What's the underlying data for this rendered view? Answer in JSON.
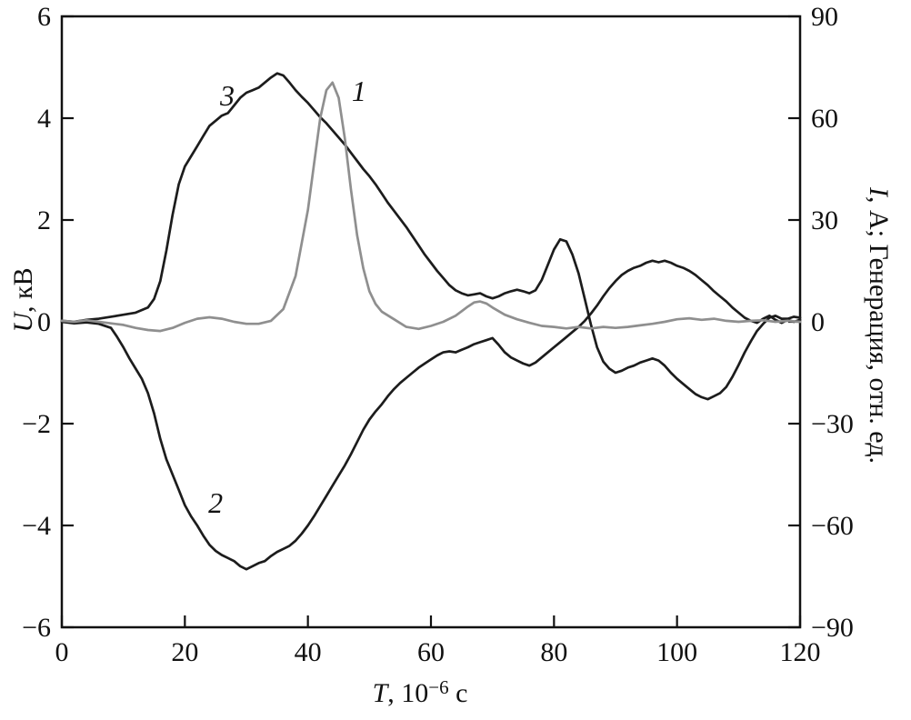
{
  "figure": {
    "background": "#ffffff",
    "frame_color": "#111111"
  },
  "labels": {
    "left_var": "U",
    "left_rest": ", кВ",
    "right_var": "I",
    "right_rest": ", А; Генерация, отн. ед.",
    "x_var": "T",
    "x_mid": ", 10",
    "x_sup": "−6",
    "x_suffix": " с"
  },
  "chart_data": {
    "type": "line",
    "title": "",
    "xlabel": "T, 10⁻⁶ с",
    "ylabel_left": "U, кВ",
    "ylabel_right": "I, А; Генерация, отн. ед.",
    "xlim": [
      0,
      120
    ],
    "ylim_left": [
      -6,
      6
    ],
    "ylim_right": [
      -90,
      90
    ],
    "x_ticks": [
      0,
      20,
      40,
      60,
      80,
      100,
      120
    ],
    "left_ticks": [
      -6,
      -4,
      -2,
      0,
      2,
      4,
      6
    ],
    "right_ticks": [
      -90,
      -60,
      -30,
      0,
      30,
      60,
      90
    ],
    "grid": false,
    "legend": "in-plot numbered curve labels",
    "annotations": [
      {
        "label": "1",
        "x": 48.3,
        "y": 4.54
      },
      {
        "label": "2",
        "x": 25.0,
        "y": -3.55
      },
      {
        "label": "3",
        "x": 26.9,
        "y": 4.45
      }
    ],
    "series": [
      {
        "name": "3",
        "color": "#1c1c1c",
        "width": 2.7,
        "points": [
          [
            0,
            0.02
          ],
          [
            2,
            0.0
          ],
          [
            4,
            0.04
          ],
          [
            6,
            0.06
          ],
          [
            8,
            0.1
          ],
          [
            10,
            0.14
          ],
          [
            12,
            0.18
          ],
          [
            14,
            0.28
          ],
          [
            15,
            0.45
          ],
          [
            16,
            0.8
          ],
          [
            17,
            1.4
          ],
          [
            18,
            2.1
          ],
          [
            19,
            2.7
          ],
          [
            20,
            3.05
          ],
          [
            21,
            3.25
          ],
          [
            22,
            3.45
          ],
          [
            23,
            3.65
          ],
          [
            24,
            3.85
          ],
          [
            25,
            3.95
          ],
          [
            26,
            4.05
          ],
          [
            27,
            4.1
          ],
          [
            28,
            4.25
          ],
          [
            29,
            4.4
          ],
          [
            30,
            4.5
          ],
          [
            31,
            4.55
          ],
          [
            32,
            4.6
          ],
          [
            33,
            4.7
          ],
          [
            34,
            4.8
          ],
          [
            35,
            4.88
          ],
          [
            36,
            4.84
          ],
          [
            37,
            4.7
          ],
          [
            38,
            4.55
          ],
          [
            39,
            4.42
          ],
          [
            40,
            4.3
          ],
          [
            41,
            4.16
          ],
          [
            42,
            4.02
          ],
          [
            43,
            3.9
          ],
          [
            44,
            3.76
          ],
          [
            45,
            3.62
          ],
          [
            46,
            3.48
          ],
          [
            47,
            3.32
          ],
          [
            48,
            3.16
          ],
          [
            49,
            3.0
          ],
          [
            50,
            2.86
          ],
          [
            51,
            2.7
          ],
          [
            52,
            2.52
          ],
          [
            53,
            2.34
          ],
          [
            54,
            2.18
          ],
          [
            55,
            2.02
          ],
          [
            56,
            1.86
          ],
          [
            57,
            1.68
          ],
          [
            58,
            1.5
          ],
          [
            59,
            1.32
          ],
          [
            60,
            1.16
          ],
          [
            61,
            1.0
          ],
          [
            62,
            0.86
          ],
          [
            63,
            0.72
          ],
          [
            64,
            0.62
          ],
          [
            65,
            0.56
          ],
          [
            66,
            0.52
          ],
          [
            67,
            0.54
          ],
          [
            68,
            0.56
          ],
          [
            69,
            0.5
          ],
          [
            70,
            0.46
          ],
          [
            71,
            0.5
          ],
          [
            72,
            0.56
          ],
          [
            73,
            0.6
          ],
          [
            74,
            0.63
          ],
          [
            75,
            0.6
          ],
          [
            76,
            0.56
          ],
          [
            77,
            0.62
          ],
          [
            78,
            0.82
          ],
          [
            79,
            1.12
          ],
          [
            80,
            1.42
          ],
          [
            81,
            1.62
          ],
          [
            82,
            1.58
          ],
          [
            83,
            1.32
          ],
          [
            84,
            0.95
          ],
          [
            85,
            0.45
          ],
          [
            86,
            -0.05
          ],
          [
            87,
            -0.5
          ],
          [
            88,
            -0.78
          ],
          [
            89,
            -0.92
          ],
          [
            90,
            -1.0
          ],
          [
            91,
            -0.96
          ],
          [
            92,
            -0.9
          ],
          [
            93,
            -0.86
          ],
          [
            94,
            -0.8
          ],
          [
            95,
            -0.76
          ],
          [
            96,
            -0.72
          ],
          [
            97,
            -0.76
          ],
          [
            98,
            -0.86
          ],
          [
            99,
            -1.0
          ],
          [
            100,
            -1.12
          ],
          [
            101,
            -1.22
          ],
          [
            102,
            -1.32
          ],
          [
            103,
            -1.42
          ],
          [
            104,
            -1.48
          ],
          [
            105,
            -1.52
          ],
          [
            106,
            -1.46
          ],
          [
            107,
            -1.4
          ],
          [
            108,
            -1.28
          ],
          [
            109,
            -1.08
          ],
          [
            110,
            -0.85
          ],
          [
            111,
            -0.6
          ],
          [
            112,
            -0.38
          ],
          [
            113,
            -0.18
          ],
          [
            114,
            -0.04
          ],
          [
            115,
            0.08
          ],
          [
            116,
            0.12
          ],
          [
            117,
            0.06
          ],
          [
            118,
            0.06
          ],
          [
            119,
            0.1
          ],
          [
            120,
            0.08
          ]
        ]
      },
      {
        "name": "2",
        "color": "#1c1c1c",
        "width": 2.7,
        "points": [
          [
            0,
            0.0
          ],
          [
            2,
            -0.03
          ],
          [
            4,
            -0.01
          ],
          [
            6,
            -0.04
          ],
          [
            8,
            -0.12
          ],
          [
            9,
            -0.3
          ],
          [
            10,
            -0.5
          ],
          [
            11,
            -0.72
          ],
          [
            12,
            -0.92
          ],
          [
            13,
            -1.12
          ],
          [
            14,
            -1.4
          ],
          [
            15,
            -1.8
          ],
          [
            16,
            -2.3
          ],
          [
            17,
            -2.7
          ],
          [
            18,
            -3.0
          ],
          [
            19,
            -3.3
          ],
          [
            20,
            -3.6
          ],
          [
            21,
            -3.82
          ],
          [
            22,
            -4.0
          ],
          [
            23,
            -4.2
          ],
          [
            24,
            -4.38
          ],
          [
            25,
            -4.5
          ],
          [
            26,
            -4.58
          ],
          [
            27,
            -4.64
          ],
          [
            28,
            -4.7
          ],
          [
            29,
            -4.8
          ],
          [
            30,
            -4.86
          ],
          [
            31,
            -4.8
          ],
          [
            32,
            -4.74
          ],
          [
            33,
            -4.7
          ],
          [
            34,
            -4.6
          ],
          [
            35,
            -4.52
          ],
          [
            36,
            -4.46
          ],
          [
            37,
            -4.4
          ],
          [
            38,
            -4.3
          ],
          [
            39,
            -4.16
          ],
          [
            40,
            -4.0
          ],
          [
            41,
            -3.82
          ],
          [
            42,
            -3.62
          ],
          [
            43,
            -3.42
          ],
          [
            44,
            -3.22
          ],
          [
            45,
            -3.02
          ],
          [
            46,
            -2.82
          ],
          [
            47,
            -2.6
          ],
          [
            48,
            -2.36
          ],
          [
            49,
            -2.12
          ],
          [
            50,
            -1.92
          ],
          [
            51,
            -1.76
          ],
          [
            52,
            -1.62
          ],
          [
            53,
            -1.46
          ],
          [
            54,
            -1.32
          ],
          [
            55,
            -1.2
          ],
          [
            56,
            -1.1
          ],
          [
            57,
            -1.0
          ],
          [
            58,
            -0.9
          ],
          [
            59,
            -0.82
          ],
          [
            60,
            -0.74
          ],
          [
            61,
            -0.66
          ],
          [
            62,
            -0.6
          ],
          [
            63,
            -0.58
          ],
          [
            64,
            -0.6
          ],
          [
            65,
            -0.55
          ],
          [
            66,
            -0.5
          ],
          [
            67,
            -0.44
          ],
          [
            68,
            -0.4
          ],
          [
            69,
            -0.36
          ],
          [
            70,
            -0.32
          ],
          [
            71,
            -0.45
          ],
          [
            72,
            -0.6
          ],
          [
            73,
            -0.7
          ],
          [
            74,
            -0.76
          ],
          [
            75,
            -0.82
          ],
          [
            76,
            -0.86
          ],
          [
            77,
            -0.8
          ],
          [
            78,
            -0.7
          ],
          [
            79,
            -0.6
          ],
          [
            80,
            -0.5
          ],
          [
            81,
            -0.4
          ],
          [
            82,
            -0.3
          ],
          [
            83,
            -0.2
          ],
          [
            84,
            -0.1
          ],
          [
            85,
            0.02
          ],
          [
            86,
            0.16
          ],
          [
            87,
            0.32
          ],
          [
            88,
            0.5
          ],
          [
            89,
            0.66
          ],
          [
            90,
            0.8
          ],
          [
            91,
            0.92
          ],
          [
            92,
            1.0
          ],
          [
            93,
            1.06
          ],
          [
            94,
            1.1
          ],
          [
            95,
            1.16
          ],
          [
            96,
            1.2
          ],
          [
            97,
            1.17
          ],
          [
            98,
            1.2
          ],
          [
            99,
            1.16
          ],
          [
            100,
            1.1
          ],
          [
            101,
            1.06
          ],
          [
            102,
            1.0
          ],
          [
            103,
            0.92
          ],
          [
            104,
            0.82
          ],
          [
            105,
            0.72
          ],
          [
            106,
            0.6
          ],
          [
            107,
            0.5
          ],
          [
            108,
            0.4
          ],
          [
            109,
            0.28
          ],
          [
            110,
            0.18
          ],
          [
            111,
            0.08
          ],
          [
            112,
            0.02
          ],
          [
            113,
            -0.02
          ],
          [
            114,
            0.06
          ],
          [
            115,
            0.12
          ],
          [
            116,
            0.04
          ],
          [
            117,
            -0.02
          ],
          [
            118,
            0.04
          ],
          [
            119,
            0.0
          ],
          [
            120,
            0.04
          ]
        ]
      },
      {
        "name": "1",
        "color": "#8f8f8f",
        "width": 2.7,
        "points": [
          [
            0,
            0.02
          ],
          [
            2,
            0.0
          ],
          [
            4,
            0.03
          ],
          [
            6,
            0.0
          ],
          [
            8,
            -0.03
          ],
          [
            10,
            -0.06
          ],
          [
            12,
            -0.12
          ],
          [
            14,
            -0.16
          ],
          [
            16,
            -0.18
          ],
          [
            18,
            -0.12
          ],
          [
            20,
            -0.02
          ],
          [
            22,
            0.06
          ],
          [
            24,
            0.09
          ],
          [
            26,
            0.06
          ],
          [
            28,
            0.0
          ],
          [
            30,
            -0.04
          ],
          [
            32,
            -0.04
          ],
          [
            34,
            0.02
          ],
          [
            36,
            0.25
          ],
          [
            38,
            0.9
          ],
          [
            40,
            2.2
          ],
          [
            41,
            3.1
          ],
          [
            42,
            4.0
          ],
          [
            43,
            4.55
          ],
          [
            44,
            4.7
          ],
          [
            45,
            4.4
          ],
          [
            46,
            3.6
          ],
          [
            47,
            2.6
          ],
          [
            48,
            1.7
          ],
          [
            49,
            1.05
          ],
          [
            50,
            0.6
          ],
          [
            51,
            0.35
          ],
          [
            52,
            0.2
          ],
          [
            54,
            0.05
          ],
          [
            56,
            -0.1
          ],
          [
            58,
            -0.14
          ],
          [
            60,
            -0.08
          ],
          [
            62,
            0.0
          ],
          [
            64,
            0.12
          ],
          [
            66,
            0.3
          ],
          [
            67,
            0.38
          ],
          [
            68,
            0.4
          ],
          [
            69,
            0.36
          ],
          [
            70,
            0.28
          ],
          [
            72,
            0.14
          ],
          [
            74,
            0.05
          ],
          [
            76,
            -0.02
          ],
          [
            78,
            -0.08
          ],
          [
            80,
            -0.1
          ],
          [
            82,
            -0.13
          ],
          [
            84,
            -0.1
          ],
          [
            86,
            -0.13
          ],
          [
            88,
            -0.1
          ],
          [
            90,
            -0.12
          ],
          [
            92,
            -0.1
          ],
          [
            94,
            -0.07
          ],
          [
            96,
            -0.04
          ],
          [
            98,
            0.0
          ],
          [
            100,
            0.05
          ],
          [
            102,
            0.07
          ],
          [
            104,
            0.04
          ],
          [
            106,
            0.06
          ],
          [
            108,
            0.02
          ],
          [
            110,
            0.0
          ],
          [
            112,
            0.02
          ],
          [
            114,
            0.03
          ],
          [
            116,
            0.0
          ],
          [
            118,
            0.02
          ],
          [
            120,
            0.0
          ]
        ]
      }
    ]
  }
}
